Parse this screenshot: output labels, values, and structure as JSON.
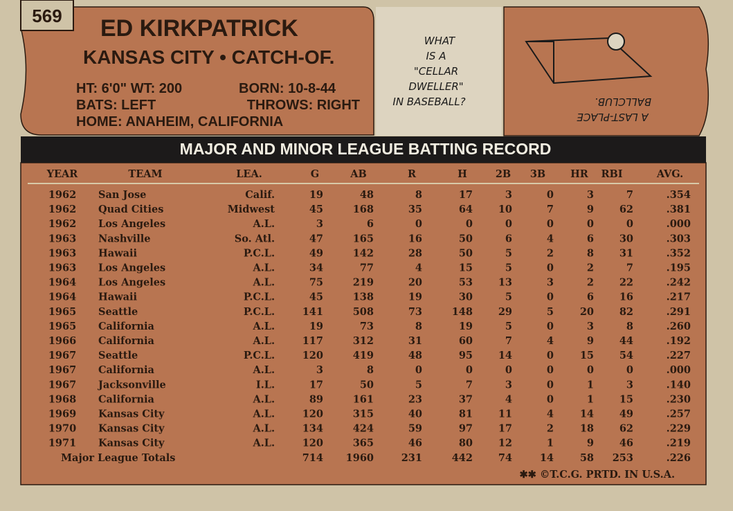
{
  "card_number": "569",
  "player": {
    "name": "ED KIRKPATRICK",
    "team_position": "KANSAS CITY • CATCH-OF.",
    "height_weight": "HT: 6'0\" WT: 200",
    "born": "BORN: 10-8-44",
    "bats": "BATS: LEFT",
    "throws": "THROWS: RIGHT",
    "home": "HOME: ANAHEIM, CALIFORNIA"
  },
  "cartoon": {
    "question": [
      "WHAT",
      "IS A",
      "\"CELLAR",
      "DWELLER\"",
      "IN BASEBALL?"
    ],
    "answer": [
      "A LAST-PLACE",
      "BALLCLUB."
    ]
  },
  "table": {
    "title": "MAJOR AND MINOR LEAGUE BATTING RECORD",
    "columns": [
      "YEAR",
      "TEAM",
      "LEA.",
      "G",
      "AB",
      "R",
      "H",
      "2B",
      "3B",
      "HR",
      "RBI",
      "AVG."
    ],
    "rows": [
      [
        "1962",
        "San Jose",
        "Calif.",
        "19",
        "48",
        "8",
        "17",
        "3",
        "0",
        "3",
        "7",
        ".354"
      ],
      [
        "1962",
        "Quad Cities",
        "Midwest",
        "45",
        "168",
        "35",
        "64",
        "10",
        "7",
        "9",
        "62",
        ".381"
      ],
      [
        "1962",
        "Los Angeles",
        "A.L.",
        "3",
        "6",
        "0",
        "0",
        "0",
        "0",
        "0",
        "0",
        ".000"
      ],
      [
        "1963",
        "Nashville",
        "So. Atl.",
        "47",
        "165",
        "16",
        "50",
        "6",
        "4",
        "6",
        "30",
        ".303"
      ],
      [
        "1963",
        "Hawaii",
        "P.C.L.",
        "49",
        "142",
        "28",
        "50",
        "5",
        "2",
        "8",
        "31",
        ".352"
      ],
      [
        "1963",
        "Los Angeles",
        "A.L.",
        "34",
        "77",
        "4",
        "15",
        "5",
        "0",
        "2",
        "7",
        ".195"
      ],
      [
        "1964",
        "Los Angeles",
        "A.L.",
        "75",
        "219",
        "20",
        "53",
        "13",
        "3",
        "2",
        "22",
        ".242"
      ],
      [
        "1964",
        "Hawaii",
        "P.C.L.",
        "45",
        "138",
        "19",
        "30",
        "5",
        "0",
        "6",
        "16",
        ".217"
      ],
      [
        "1965",
        "Seattle",
        "P.C.L.",
        "141",
        "508",
        "73",
        "148",
        "29",
        "5",
        "20",
        "82",
        ".291"
      ],
      [
        "1965",
        "California",
        "A.L.",
        "19",
        "73",
        "8",
        "19",
        "5",
        "0",
        "3",
        "8",
        ".260"
      ],
      [
        "1966",
        "California",
        "A.L.",
        "117",
        "312",
        "31",
        "60",
        "7",
        "4",
        "9",
        "44",
        ".192"
      ],
      [
        "1967",
        "Seattle",
        "P.C.L.",
        "120",
        "419",
        "48",
        "95",
        "14",
        "0",
        "15",
        "54",
        ".227"
      ],
      [
        "1967",
        "California",
        "A.L.",
        "3",
        "8",
        "0",
        "0",
        "0",
        "0",
        "0",
        "0",
        ".000"
      ],
      [
        "1967",
        "Jacksonville",
        "I.L.",
        "17",
        "50",
        "5",
        "7",
        "3",
        "0",
        "1",
        "3",
        ".140"
      ],
      [
        "1968",
        "California",
        "A.L.",
        "89",
        "161",
        "23",
        "37",
        "4",
        "0",
        "1",
        "15",
        ".230"
      ],
      [
        "1969",
        "Kansas City",
        "A.L.",
        "120",
        "315",
        "40",
        "81",
        "11",
        "4",
        "14",
        "49",
        ".257"
      ],
      [
        "1970",
        "Kansas City",
        "A.L.",
        "134",
        "424",
        "59",
        "97",
        "17",
        "2",
        "18",
        "62",
        ".229"
      ],
      [
        "1971",
        "Kansas City",
        "A.L.",
        "120",
        "365",
        "46",
        "80",
        "12",
        "1",
        "9",
        "46",
        ".219"
      ]
    ],
    "totals": {
      "label": "Major League Totals",
      "values": [
        "714",
        "1960",
        "231",
        "442",
        "74",
        "14",
        "58",
        "253",
        ".226"
      ]
    }
  },
  "footer": "✱✱ ©T.C.G. PRTD. IN U.S.A."
}
